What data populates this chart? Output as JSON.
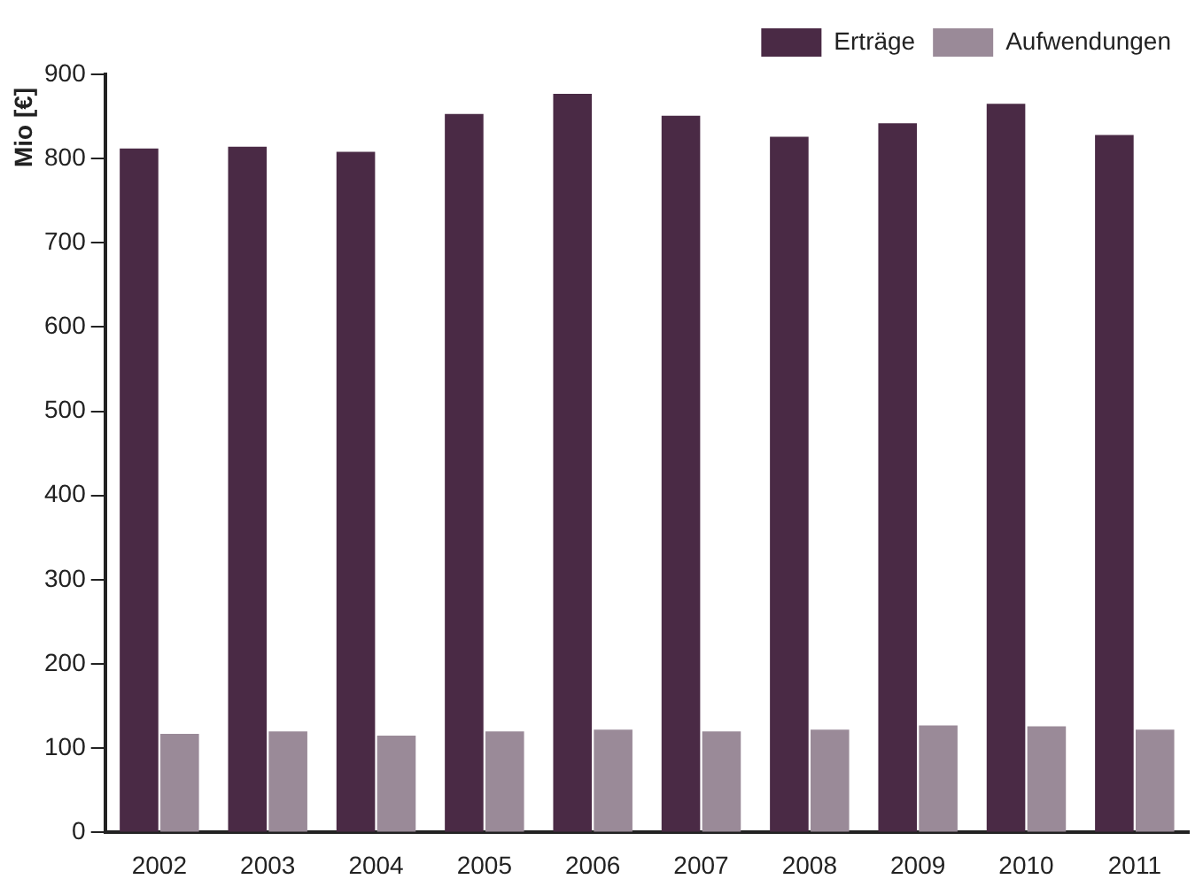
{
  "chart_data": {
    "type": "bar",
    "ylabel": "Mio [€]",
    "categories": [
      "2002",
      "2003",
      "2004",
      "2005",
      "2006",
      "2007",
      "2008",
      "2009",
      "2010",
      "2011"
    ],
    "series": [
      {
        "name": "Erträge",
        "color": "#4a2a45",
        "values": [
          812,
          814,
          808,
          853,
          877,
          851,
          826,
          842,
          865,
          828
        ]
      },
      {
        "name": "Aufwendungen",
        "color": "#9a8a98",
        "values": [
          117,
          120,
          115,
          120,
          122,
          120,
          122,
          127,
          126,
          122
        ]
      }
    ],
    "ylim": [
      0,
      900
    ],
    "yticks": [
      0,
      100,
      200,
      300,
      400,
      500,
      600,
      700,
      800,
      900
    ],
    "grid": false,
    "legend": "top right"
  }
}
